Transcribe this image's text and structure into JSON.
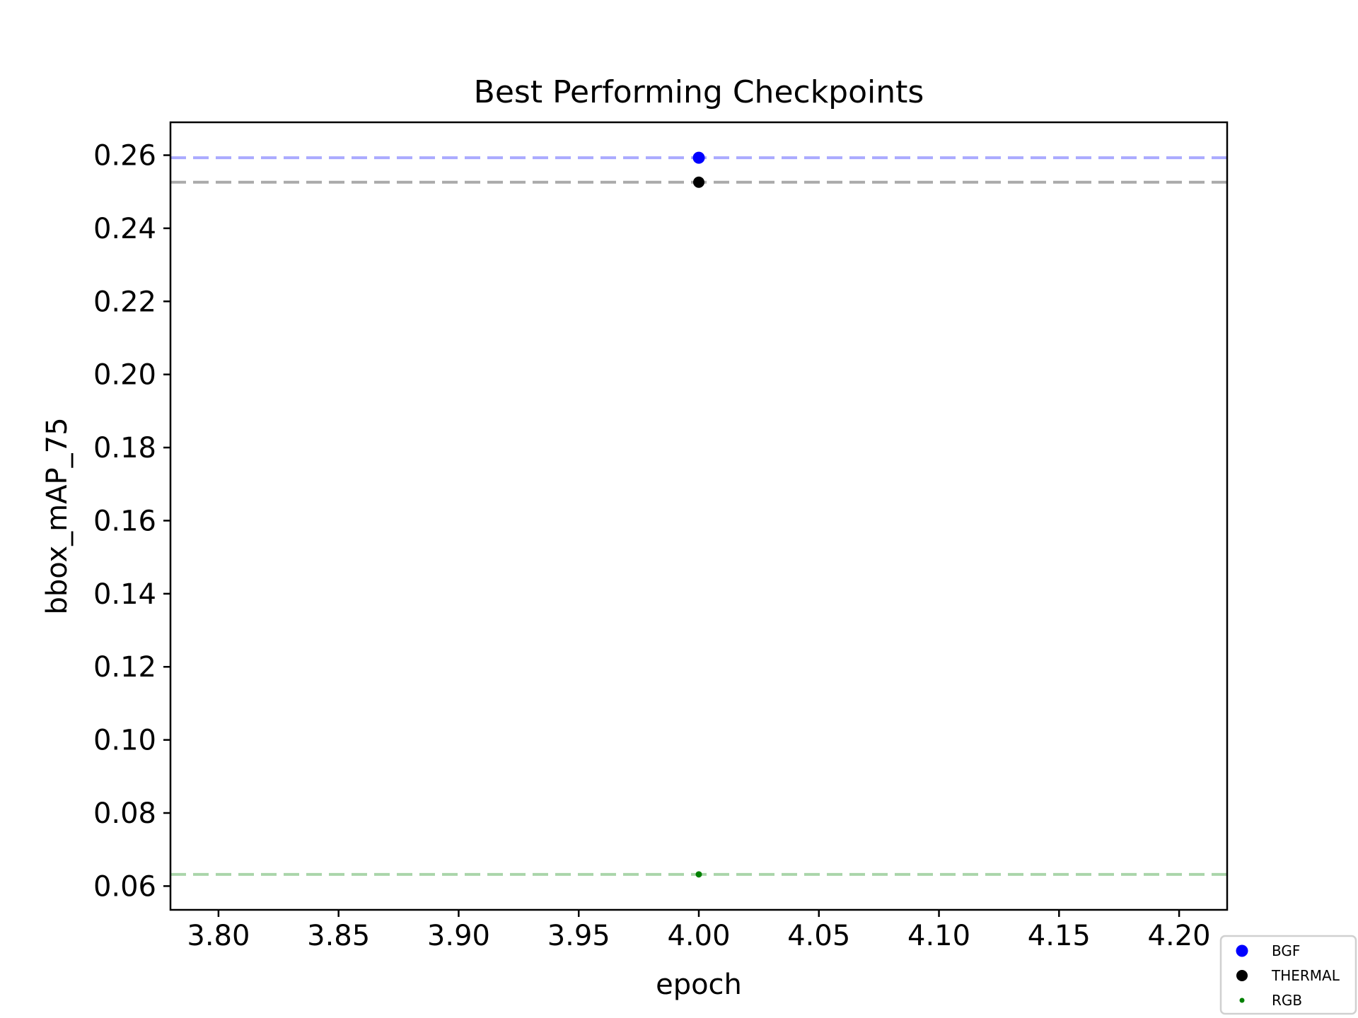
{
  "chart_data": {
    "type": "scatter",
    "title": "Best Performing Checkpoints",
    "xlabel": "epoch",
    "ylabel": "bbox_mAP_75",
    "xlim": [
      3.78,
      4.22
    ],
    "ylim": [
      0.0535,
      0.269
    ],
    "xticks": [
      3.8,
      3.85,
      3.9,
      3.95,
      4.0,
      4.05,
      4.1,
      4.15,
      4.2
    ],
    "xtick_labels": [
      "3.80",
      "3.85",
      "3.90",
      "3.95",
      "4.00",
      "4.05",
      "4.10",
      "4.15",
      "4.20"
    ],
    "yticks": [
      0.06,
      0.08,
      0.1,
      0.12,
      0.14,
      0.16,
      0.18,
      0.2,
      0.22,
      0.24,
      0.26
    ],
    "ytick_labels": [
      "0.06",
      "0.08",
      "0.10",
      "0.12",
      "0.14",
      "0.16",
      "0.18",
      "0.20",
      "0.22",
      "0.24",
      "0.26"
    ],
    "grid": false,
    "legend_position": "bottom-right, outside plot area",
    "series": [
      {
        "name": "BGF",
        "color": "#0000ff",
        "line_color": "#aaaaff",
        "marker": "large",
        "points": [
          {
            "x": 4.0,
            "y": 0.2593
          }
        ]
      },
      {
        "name": "THERMAL",
        "color": "#000000",
        "line_color": "#aaaaaa",
        "marker": "medium",
        "points": [
          {
            "x": 4.0,
            "y": 0.2526
          }
        ]
      },
      {
        "name": "RGB",
        "color": "#008000",
        "line_color": "#aad5aa",
        "marker": "small",
        "points": [
          {
            "x": 4.0,
            "y": 0.0632
          }
        ]
      }
    ],
    "reference_lines": [
      {
        "series": "BGF",
        "y": 0.2593,
        "style": "dashed"
      },
      {
        "series": "THERMAL",
        "y": 0.2526,
        "style": "dashed"
      },
      {
        "series": "RGB",
        "y": 0.0632,
        "style": "dashed"
      }
    ]
  }
}
